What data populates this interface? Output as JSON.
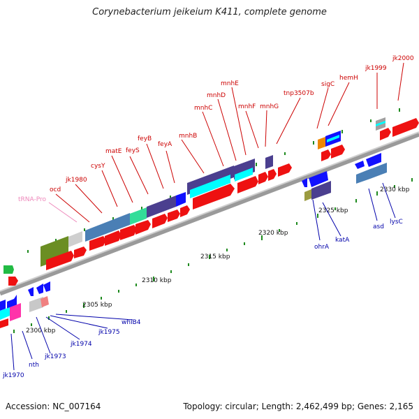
{
  "title": "Corynebacterium jeikeium K411, complete genome",
  "footer": {
    "accession": "Accession: NC_007164",
    "summary": "Topology: circular; Length: 2,462,499 bp; Genes: 2,165"
  },
  "colors": {
    "backbone": "#808080",
    "forward_gene": "#ff0000",
    "reverse_gene": "#0000ee",
    "tick": "#228822",
    "label_top": "#cc0000",
    "label_bottom": "#0000aa",
    "trna_label": "#ee88bb"
  },
  "scale_labels": [
    "2300 kbp",
    "2305 kbp",
    "2310 kbp",
    "2315 kbp",
    "2320 kbp",
    "2325 kbp",
    "2330 kbp"
  ],
  "gene_labels_top": [
    "tRNA-Pro",
    "ocd",
    "jk1980",
    "cysY",
    "matE",
    "feyS",
    "feyB",
    "feyA",
    "mnhB",
    "mnhC",
    "mnhD",
    "mnhE",
    "mnhF",
    "mnhG",
    "tnp3507b",
    "sigC",
    "hemH",
    "jk1999",
    "jk2000"
  ],
  "gene_labels_bottom": [
    "jk1970",
    "nth",
    "jk1973",
    "jk1974",
    "jk1975",
    "whiB4",
    "ohrA",
    "katA",
    "asd",
    "lysC"
  ]
}
